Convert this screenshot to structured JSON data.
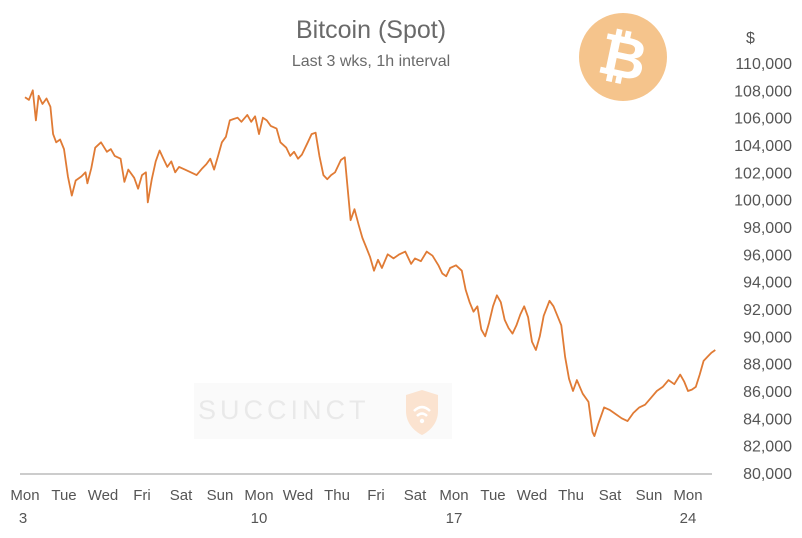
{
  "chart_data": {
    "type": "line",
    "title": "Bitcoin (Spot)",
    "subtitle": "Last 3 wks, 1h interval",
    "unit_label": "$",
    "ylim": [
      80000,
      110000
    ],
    "yticks": [
      "80,000",
      "82,000",
      "84,000",
      "86,000",
      "88,000",
      "90,000",
      "92,000",
      "94,000",
      "96,000",
      "98,000",
      "100,000",
      "102,000",
      "104,000",
      "106,000",
      "108,000",
      "110,000"
    ],
    "xlim": [
      0,
      17.7
    ],
    "xticks": [
      {
        "x": 0,
        "day": "Mon",
        "date": "3"
      },
      {
        "x": 1,
        "day": "Tue",
        "date": ""
      },
      {
        "x": 2,
        "day": "Wed",
        "date": ""
      },
      {
        "x": 3,
        "day": "Fri",
        "date": ""
      },
      {
        "x": 4,
        "day": "Sat",
        "date": ""
      },
      {
        "x": 5,
        "day": "Sun",
        "date": ""
      },
      {
        "x": 6,
        "day": "Mon",
        "date": "10"
      },
      {
        "x": 7,
        "day": "Wed",
        "date": ""
      },
      {
        "x": 8,
        "day": "Thu",
        "date": ""
      },
      {
        "x": 9,
        "day": "Fri",
        "date": ""
      },
      {
        "x": 10,
        "day": "Sat",
        "date": ""
      },
      {
        "x": 11,
        "day": "Mon",
        "date": "17"
      },
      {
        "x": 12,
        "day": "Tue",
        "date": ""
      },
      {
        "x": 13,
        "day": "Wed",
        "date": ""
      },
      {
        "x": 14,
        "day": "Thu",
        "date": ""
      },
      {
        "x": 15,
        "day": "Sat",
        "date": ""
      },
      {
        "x": 16,
        "day": "Sun",
        "date": ""
      },
      {
        "x": 17,
        "day": "Mon",
        "date": "24"
      }
    ],
    "series": [
      {
        "color": "#e07b35",
        "points": [
          [
            0.0,
            107500
          ],
          [
            0.1,
            107300
          ],
          [
            0.2,
            108000
          ],
          [
            0.28,
            105800
          ],
          [
            0.35,
            107600
          ],
          [
            0.45,
            107000
          ],
          [
            0.55,
            107400
          ],
          [
            0.65,
            106800
          ],
          [
            0.72,
            104800
          ],
          [
            0.8,
            104200
          ],
          [
            0.9,
            104400
          ],
          [
            1.0,
            103700
          ],
          [
            1.1,
            101700
          ],
          [
            1.2,
            100300
          ],
          [
            1.3,
            101400
          ],
          [
            1.45,
            101700
          ],
          [
            1.55,
            102000
          ],
          [
            1.6,
            101200
          ],
          [
            1.7,
            102300
          ],
          [
            1.8,
            103800
          ],
          [
            1.95,
            104200
          ],
          [
            2.1,
            103500
          ],
          [
            2.2,
            103700
          ],
          [
            2.3,
            103200
          ],
          [
            2.45,
            103000
          ],
          [
            2.55,
            101300
          ],
          [
            2.65,
            102200
          ],
          [
            2.8,
            101600
          ],
          [
            2.9,
            100800
          ],
          [
            3.0,
            101800
          ],
          [
            3.1,
            102000
          ],
          [
            3.15,
            99800
          ],
          [
            3.25,
            101500
          ],
          [
            3.35,
            102800
          ],
          [
            3.45,
            103600
          ],
          [
            3.55,
            103000
          ],
          [
            3.65,
            102400
          ],
          [
            3.75,
            102800
          ],
          [
            3.85,
            102000
          ],
          [
            3.95,
            102400
          ],
          [
            4.1,
            102200
          ],
          [
            4.25,
            102000
          ],
          [
            4.4,
            101800
          ],
          [
            4.55,
            102300
          ],
          [
            4.65,
            102600
          ],
          [
            4.75,
            103000
          ],
          [
            4.85,
            102200
          ],
          [
            4.95,
            103200
          ],
          [
            5.05,
            104200
          ],
          [
            5.15,
            104600
          ],
          [
            5.25,
            105800
          ],
          [
            5.35,
            105900
          ],
          [
            5.45,
            106000
          ],
          [
            5.55,
            105700
          ],
          [
            5.7,
            106200
          ],
          [
            5.8,
            105700
          ],
          [
            5.9,
            106100
          ],
          [
            6.0,
            104800
          ],
          [
            6.1,
            106000
          ],
          [
            6.2,
            105800
          ],
          [
            6.3,
            105400
          ],
          [
            6.45,
            105200
          ],
          [
            6.55,
            104200
          ],
          [
            6.7,
            103800
          ],
          [
            6.8,
            103200
          ],
          [
            6.9,
            103500
          ],
          [
            7.0,
            103000
          ],
          [
            7.1,
            103300
          ],
          [
            7.25,
            104200
          ],
          [
            7.35,
            104800
          ],
          [
            7.45,
            104900
          ],
          [
            7.55,
            103200
          ],
          [
            7.65,
            101800
          ],
          [
            7.75,
            101500
          ],
          [
            7.85,
            101800
          ],
          [
            7.95,
            102000
          ],
          [
            8.1,
            102900
          ],
          [
            8.2,
            103100
          ],
          [
            8.25,
            101500
          ],
          [
            8.35,
            98500
          ],
          [
            8.45,
            99300
          ],
          [
            8.55,
            98200
          ],
          [
            8.65,
            97200
          ],
          [
            8.75,
            96500
          ],
          [
            8.85,
            95800
          ],
          [
            8.95,
            94800
          ],
          [
            9.05,
            95600
          ],
          [
            9.15,
            95000
          ],
          [
            9.3,
            96000
          ],
          [
            9.45,
            95700
          ],
          [
            9.6,
            96000
          ],
          [
            9.75,
            96200
          ],
          [
            9.9,
            95300
          ],
          [
            10.0,
            95700
          ],
          [
            10.15,
            95500
          ],
          [
            10.3,
            96200
          ],
          [
            10.45,
            95900
          ],
          [
            10.6,
            95200
          ],
          [
            10.7,
            94600
          ],
          [
            10.8,
            94400
          ],
          [
            10.9,
            95000
          ],
          [
            11.05,
            95200
          ],
          [
            11.2,
            94800
          ],
          [
            11.3,
            93400
          ],
          [
            11.4,
            92500
          ],
          [
            11.5,
            91800
          ],
          [
            11.6,
            92200
          ],
          [
            11.7,
            90500
          ],
          [
            11.8,
            90000
          ],
          [
            11.9,
            91000
          ],
          [
            12.0,
            92200
          ],
          [
            12.1,
            93000
          ],
          [
            12.2,
            92500
          ],
          [
            12.3,
            91200
          ],
          [
            12.4,
            90600
          ],
          [
            12.5,
            90200
          ],
          [
            12.6,
            90800
          ],
          [
            12.7,
            91600
          ],
          [
            12.8,
            92200
          ],
          [
            12.9,
            91400
          ],
          [
            13.0,
            89600
          ],
          [
            13.1,
            89000
          ],
          [
            13.2,
            90000
          ],
          [
            13.3,
            91500
          ],
          [
            13.45,
            92600
          ],
          [
            13.55,
            92200
          ],
          [
            13.65,
            91500
          ],
          [
            13.75,
            90800
          ],
          [
            13.85,
            88500
          ],
          [
            13.95,
            86900
          ],
          [
            14.05,
            86000
          ],
          [
            14.15,
            86800
          ],
          [
            14.3,
            85800
          ],
          [
            14.45,
            85200
          ],
          [
            14.55,
            83000
          ],
          [
            14.6,
            82700
          ],
          [
            14.7,
            83600
          ],
          [
            14.85,
            84800
          ],
          [
            15.0,
            84600
          ],
          [
            15.15,
            84300
          ],
          [
            15.3,
            84000
          ],
          [
            15.45,
            83800
          ],
          [
            15.6,
            84400
          ],
          [
            15.75,
            84800
          ],
          [
            15.9,
            85000
          ],
          [
            16.05,
            85500
          ],
          [
            16.2,
            86000
          ],
          [
            16.35,
            86300
          ],
          [
            16.5,
            86800
          ],
          [
            16.65,
            86500
          ],
          [
            16.8,
            87200
          ],
          [
            16.9,
            86700
          ],
          [
            17.0,
            86000
          ],
          [
            17.1,
            86100
          ],
          [
            17.2,
            86300
          ],
          [
            17.3,
            87200
          ],
          [
            17.4,
            88200
          ],
          [
            17.5,
            88500
          ],
          [
            17.6,
            88800
          ],
          [
            17.7,
            89000
          ]
        ]
      }
    ]
  },
  "watermark": {
    "text": "SUCCINCT"
  },
  "logo": {
    "glyph": "₿",
    "color": "#f5c48c"
  }
}
